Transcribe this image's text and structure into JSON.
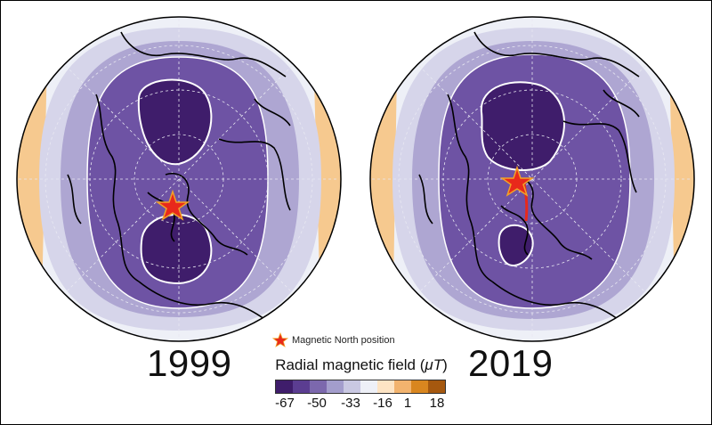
{
  "panels": [
    {
      "year": "1999",
      "pole": "north-center"
    },
    {
      "year": "2019",
      "pole": "north-center"
    }
  ],
  "legend": {
    "marker_label": "Magnetic North position",
    "marker_color": "#e8291b",
    "colorbar_title_prefix": "Radial magnetic field (",
    "colorbar_title_unit": "μT",
    "colorbar_title_suffix": ")",
    "tick_labels": [
      "-67",
      "-50",
      "-33",
      "-16",
      "1",
      "18"
    ],
    "colors": [
      "#3f1d6b",
      "#5b3d91",
      "#7c68ad",
      "#a39dcc",
      "#c9c8e2",
      "#eef0f7",
      "#fde4c4",
      "#f2b36e",
      "#d9861f",
      "#a5580f"
    ]
  },
  "style": {
    "land_outline": "#000000",
    "contour_line": "#ffffff",
    "graticule": "#e8e8f2"
  }
}
